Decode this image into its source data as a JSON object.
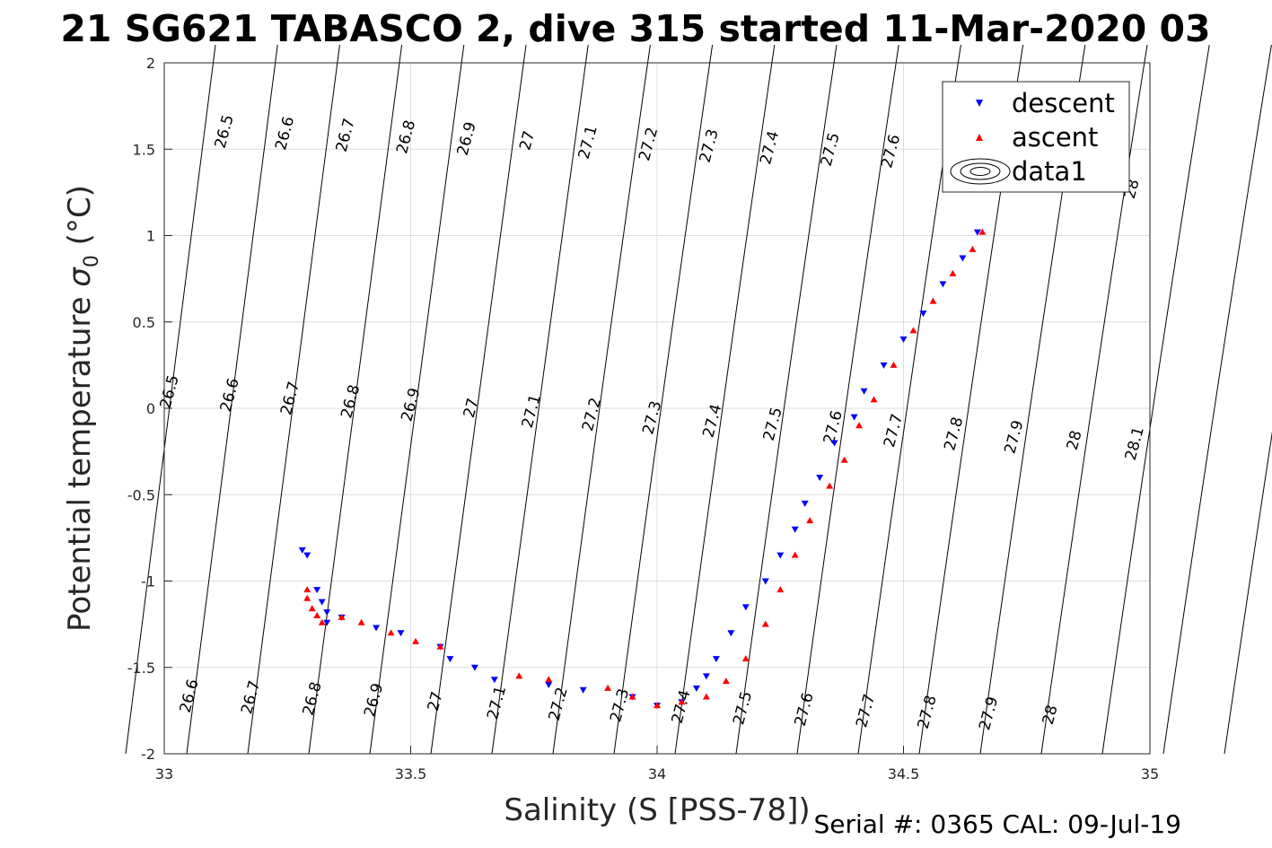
{
  "title": "21 SG621 TABASCO 2, dive 315 started 11-Mar-2020 03",
  "footer": "Serial #: 0365  CAL: 09-Jul-19",
  "chart_data": {
    "type": "scatter",
    "title": "21 SG621 TABASCO 2, dive 315 started 11-Mar-2020 03",
    "xlabel": "Salinity (S [PSS-78])",
    "ylabel_main": "Potential temperature ",
    "ylabel_sigma": "σ",
    "ylabel_sub": "0",
    "ylabel_unit": " (°C)",
    "xlim": [
      33,
      35
    ],
    "ylim": [
      -2,
      2
    ],
    "xticks": [
      "33",
      "33.5",
      "34",
      "34.5",
      "35"
    ],
    "yticks": [
      "-2",
      "-1.5",
      "-1",
      "-0.5",
      "0",
      "0.5",
      "1",
      "1.5",
      "2"
    ],
    "grid": true,
    "legend_position": "top-right",
    "legend": [
      "descent",
      "ascent",
      "data1"
    ],
    "series": [
      {
        "name": "descent",
        "color": "#0000ff",
        "marker": "triangle-down",
        "points": [
          [
            33.28,
            -0.82
          ],
          [
            33.29,
            -0.85
          ],
          [
            33.31,
            -1.05
          ],
          [
            33.32,
            -1.12
          ],
          [
            33.33,
            -1.18
          ],
          [
            33.33,
            -1.24
          ],
          [
            33.36,
            -1.21
          ],
          [
            33.43,
            -1.27
          ],
          [
            33.48,
            -1.3
          ],
          [
            33.56,
            -1.38
          ],
          [
            33.58,
            -1.45
          ],
          [
            33.63,
            -1.5
          ],
          [
            33.67,
            -1.57
          ],
          [
            33.78,
            -1.6
          ],
          [
            33.85,
            -1.63
          ],
          [
            33.95,
            -1.67
          ],
          [
            34.0,
            -1.72
          ],
          [
            34.05,
            -1.7
          ],
          [
            34.08,
            -1.62
          ],
          [
            34.1,
            -1.55
          ],
          [
            34.12,
            -1.45
          ],
          [
            34.15,
            -1.3
          ],
          [
            34.18,
            -1.15
          ],
          [
            34.22,
            -1.0
          ],
          [
            34.25,
            -0.85
          ],
          [
            34.28,
            -0.7
          ],
          [
            34.3,
            -0.55
          ],
          [
            34.33,
            -0.4
          ],
          [
            34.36,
            -0.2
          ],
          [
            34.4,
            -0.05
          ],
          [
            34.42,
            0.1
          ],
          [
            34.46,
            0.25
          ],
          [
            34.5,
            0.4
          ],
          [
            34.54,
            0.55
          ],
          [
            34.58,
            0.72
          ],
          [
            34.62,
            0.87
          ],
          [
            34.65,
            1.02
          ]
        ]
      },
      {
        "name": "ascent",
        "color": "#ff0000",
        "marker": "triangle-up",
        "points": [
          [
            33.29,
            -1.05
          ],
          [
            33.29,
            -1.1
          ],
          [
            33.3,
            -1.16
          ],
          [
            33.31,
            -1.2
          ],
          [
            33.32,
            -1.24
          ],
          [
            33.36,
            -1.21
          ],
          [
            33.4,
            -1.24
          ],
          [
            33.46,
            -1.3
          ],
          [
            33.51,
            -1.35
          ],
          [
            33.56,
            -1.38
          ],
          [
            33.72,
            -1.55
          ],
          [
            33.78,
            -1.57
          ],
          [
            33.9,
            -1.62
          ],
          [
            33.95,
            -1.67
          ],
          [
            34.0,
            -1.72
          ],
          [
            34.05,
            -1.7
          ],
          [
            34.1,
            -1.67
          ],
          [
            34.14,
            -1.58
          ],
          [
            34.18,
            -1.45
          ],
          [
            34.22,
            -1.25
          ],
          [
            34.25,
            -1.05
          ],
          [
            34.28,
            -0.85
          ],
          [
            34.31,
            -0.65
          ],
          [
            34.35,
            -0.45
          ],
          [
            34.38,
            -0.3
          ],
          [
            34.41,
            -0.1
          ],
          [
            34.44,
            0.05
          ],
          [
            34.48,
            0.25
          ],
          [
            34.52,
            0.45
          ],
          [
            34.56,
            0.62
          ],
          [
            34.6,
            0.78
          ],
          [
            34.64,
            0.92
          ],
          [
            34.66,
            1.02
          ]
        ]
      }
    ]
  },
  "upper_contour_labels": [
    "26.5",
    "26.6",
    "26.7",
    "26.8",
    "26.9",
    "27",
    "27.1",
    "27.2",
    "27.3",
    "27.4",
    "27.5",
    "27.6",
    "28"
  ],
  "middle_contour_labels": [
    "26.5",
    "26.6",
    "26.7",
    "26.8",
    "26.9",
    "27",
    "27.1",
    "27.2",
    "27.3",
    "27.4",
    "27.5",
    "27.6",
    "27.7",
    "27.8",
    "27.9",
    "28",
    "28.1"
  ],
  "lower_contour_labels": [
    "26.6",
    "26.7",
    "26.8",
    "26.9",
    "27",
    "27.1",
    "27.2",
    "27.3",
    "27.4",
    "27.5",
    "27.6",
    "27.7",
    "27.8",
    "27.9",
    "28"
  ]
}
